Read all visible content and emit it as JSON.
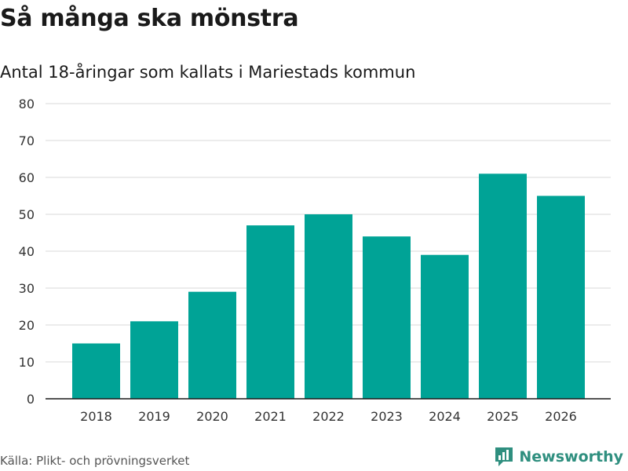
{
  "colors": {
    "bar": "#00a396",
    "grid": "#d9d9d9",
    "axis": "#1a1a1a",
    "tick_text": "#333333",
    "brand": "#2f8f7f"
  },
  "chart_data": {
    "type": "bar",
    "title": "Så många ska mönstra",
    "subtitle": "Antal 18-åringar som kallats i Mariestads kommun",
    "categories": [
      "2018",
      "2019",
      "2020",
      "2021",
      "2022",
      "2023",
      "2024",
      "2025",
      "2026"
    ],
    "values": [
      15,
      21,
      29,
      47,
      50,
      44,
      39,
      61,
      55
    ],
    "ylim": [
      0,
      80
    ],
    "yticks": [
      "0",
      "10",
      "20",
      "30",
      "40",
      "50",
      "60",
      "70",
      "80"
    ],
    "xlabel": "",
    "ylabel": "",
    "grid": true
  },
  "footer": {
    "source": "Källa: Plikt- och prövningsverket",
    "brand": "Newsworthy",
    "brand_icon": "newsworthy-logo-icon"
  }
}
